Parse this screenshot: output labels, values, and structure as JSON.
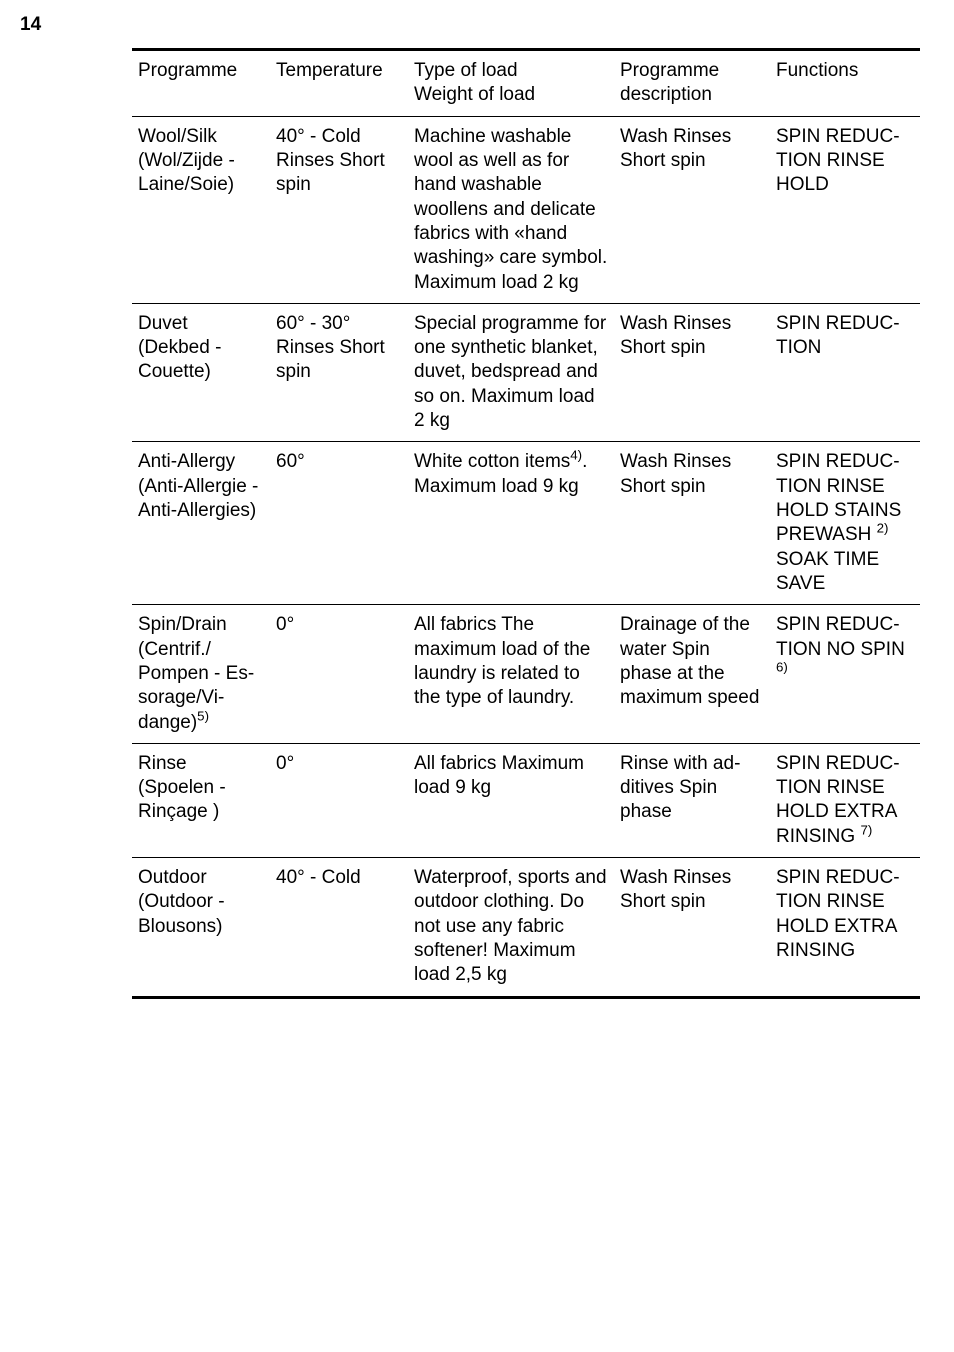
{
  "page_number": "14",
  "table": {
    "headers": {
      "col1": "Programme",
      "col2": "Temperature",
      "col3_l1": "Type of load",
      "col3_l2": "Weight of load",
      "col4_l1": "Programme",
      "col4_l2": "description",
      "col5": "Functions"
    },
    "rows": [
      {
        "programme": "Wool/Silk (Wol/Zijde - Laine/Soie)",
        "temperature": "40° - Cold Rinses Short spin",
        "load": "Machine washa­ble wool as well as for hand wash­able woollens and delicate fab­rics with «hand washing» care symbol. Maximum load 2 kg",
        "description": "Wash Rinses Short spin",
        "functions": "SPIN REDUC­TION RINSE HOLD"
      },
      {
        "programme": "Duvet (Dekbed - Couette)",
        "temperature": "60° - 30° Rinses Short spin",
        "load": "Special pro­gramme for one synthetic blanket, duvet, bed­spread and so on. Maximum load 2 kg",
        "description": "Wash Rinses Short spin",
        "functions": "SPIN REDUC­TION"
      },
      {
        "programme": "Anti-Allergy (Anti-Allergie - Anti-Aller­gies)",
        "temperature": "60°",
        "load_pre": "White cotton items",
        "load_sup": "4)",
        "load_post": ". Maximum load 9 kg",
        "description": "Wash Rinses Short spin",
        "functions_pre": "SPIN REDUC­TION RINSE HOLD STAINS PREWASH ",
        "functions_sup": "2)",
        "functions_post": " SOAK TIME SAVE"
      },
      {
        "programme_pre": "Spin/Drain (Centrif./ Pompen - Es­sorage/Vi­dange)",
        "programme_sup": "5)",
        "temperature": "0°",
        "load": "All fabrics The maximum load of the laun­dry is related to the type of laun­dry.",
        "description": "Drainage of the water Spin phase at the maximum speed",
        "functions_pre": "SPIN REDUC­TION NO SPIN ",
        "functions_sup": "6)"
      },
      {
        "programme": "Rinse (Spoelen - Rinçage )",
        "temperature": "0°",
        "load": "All fabrics Maximum load 9 kg",
        "description": "Rinse with ad­ditives Spin phase",
        "functions_pre": "SPIN REDUC­TION RINSE HOLD EXTRA RINS­ING ",
        "functions_sup": "7)"
      },
      {
        "programme": "Outdoor (Outdoor - Blousons)",
        "temperature": "40° - Cold",
        "load": "Waterproof, sports and out­door clothing. Do not use any fabric softener! Maximum load 2,5 kg",
        "description": "Wash Rinses Short spin",
        "functions": "SPIN REDUC­TION RINSE HOLD EXTRA RINS­ING"
      }
    ]
  }
}
